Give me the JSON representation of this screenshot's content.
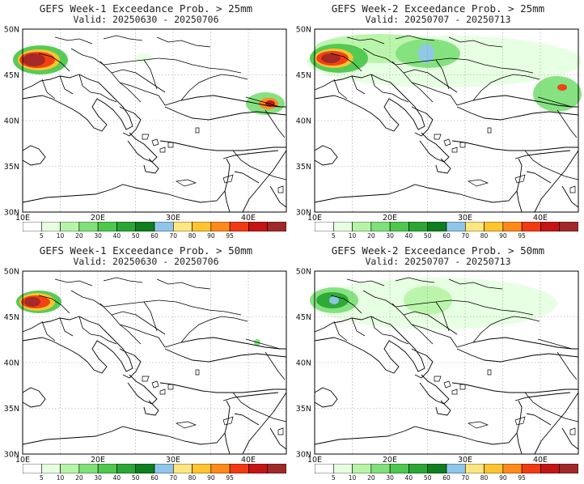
{
  "panels": [
    {
      "title": "GEFS Week-1 Exceedance Prob. > 25mm",
      "valid": "Valid: 20250630 - 20250706"
    },
    {
      "title": "GEFS Week-2 Exceedance Prob. > 25mm",
      "valid": "Valid: 20250707 - 20250713"
    },
    {
      "title": "GEFS Week-1 Exceedance Prob. > 50mm",
      "valid": "Valid: 20250630 - 20250706"
    },
    {
      "title": "GEFS Week-2 Exceedance Prob. > 50mm",
      "valid": "Valid: 20250707 - 20250713"
    }
  ],
  "axes": {
    "lat_labels": [
      "50N",
      "45N",
      "40N",
      "35N",
      "30N"
    ],
    "lon_labels": [
      "10E",
      "20E",
      "30E",
      "40E"
    ]
  },
  "legend": {
    "labels": [
      "5",
      "10",
      "20",
      "30",
      "40",
      "50",
      "60",
      "70",
      "80",
      "90",
      "95"
    ],
    "colors": [
      "#ffffff",
      "#e6ffe0",
      "#b7f4a8",
      "#80e07a",
      "#4dc84d",
      "#2aa634",
      "#0e7f1e",
      "#8fc6ea",
      "#ffe680",
      "#ffc42e",
      "#ff8a1a",
      "#f23a12",
      "#c41414",
      "#a02828"
    ]
  }
}
